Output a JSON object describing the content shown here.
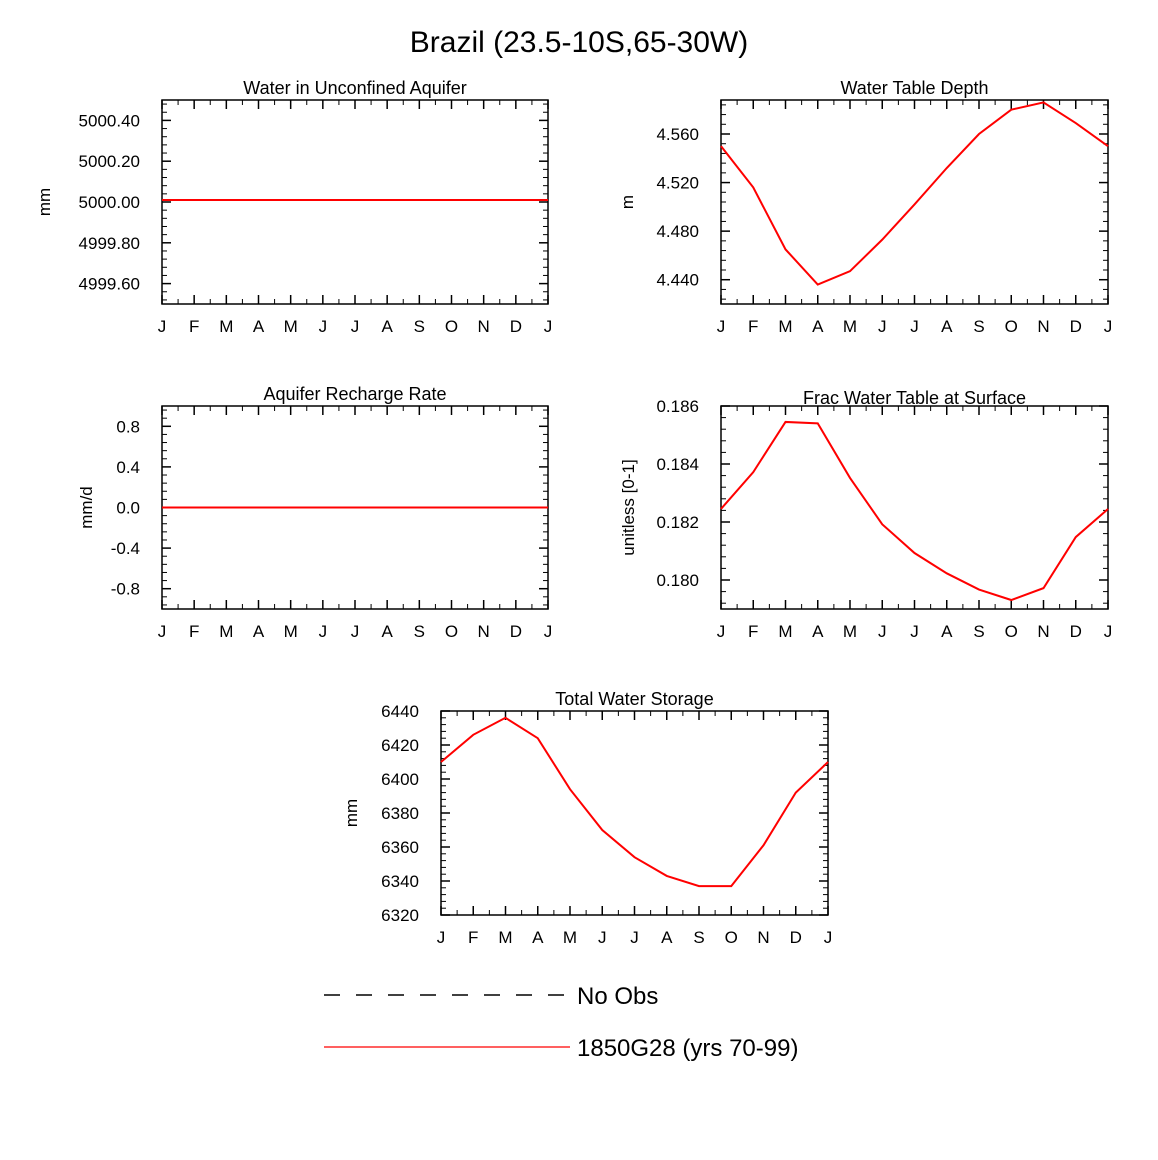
{
  "title": "Brazil (23.5-10S,65-30W)",
  "colors": {
    "series": "#ff0000",
    "obs": "#000000",
    "axis": "#000000"
  },
  "chart_data": [
    {
      "type": "line",
      "title": "Water in Unconfined Aquifer",
      "ylabel": "mm",
      "ylim": [
        4999.5,
        5000.5
      ],
      "yticks": [
        4999.6,
        4999.8,
        5000.0,
        5000.2,
        5000.4
      ],
      "ytick_labels": [
        "4999.60",
        "4999.80",
        "5000.00",
        "5000.20",
        "5000.40"
      ],
      "categories": [
        "J",
        "F",
        "M",
        "A",
        "M",
        "J",
        "J",
        "A",
        "S",
        "O",
        "N",
        "D",
        "J"
      ],
      "series": [
        {
          "name": "1850G28 (yrs 70-99)",
          "values": [
            5000.01,
            5000.01,
            5000.01,
            5000.01,
            5000.01,
            5000.01,
            5000.01,
            5000.01,
            5000.01,
            5000.01,
            5000.01,
            5000.01,
            5000.01
          ]
        }
      ]
    },
    {
      "type": "line",
      "title": "Water Table Depth",
      "ylabel": "m",
      "ylim": [
        4.42,
        4.588
      ],
      "yticks": [
        4.44,
        4.48,
        4.52,
        4.56
      ],
      "ytick_labels": [
        "4.440",
        "4.480",
        "4.520",
        "4.560"
      ],
      "categories": [
        "J",
        "F",
        "M",
        "A",
        "M",
        "J",
        "J",
        "A",
        "S",
        "O",
        "N",
        "D",
        "J"
      ],
      "series": [
        {
          "name": "1850G28 (yrs 70-99)",
          "values": [
            4.55,
            4.516,
            4.465,
            4.436,
            4.447,
            4.473,
            4.502,
            4.532,
            4.56,
            4.58,
            4.586,
            4.569,
            4.55
          ]
        }
      ]
    },
    {
      "type": "line",
      "title": "Aquifer Recharge Rate",
      "ylabel": "mm/d",
      "ylim": [
        -1.0,
        1.0
      ],
      "yticks": [
        -0.8,
        -0.4,
        0.0,
        0.4,
        0.8
      ],
      "ytick_labels": [
        "-0.8",
        "-0.4",
        "0.0",
        "0.4",
        "0.8"
      ],
      "categories": [
        "J",
        "F",
        "M",
        "A",
        "M",
        "J",
        "J",
        "A",
        "S",
        "O",
        "N",
        "D",
        "J"
      ],
      "series": [
        {
          "name": "1850G28 (yrs 70-99)",
          "values": [
            0,
            0,
            0,
            0,
            0,
            0,
            0,
            0,
            0,
            0,
            0,
            0,
            0
          ]
        }
      ]
    },
    {
      "type": "line",
      "title": "Frac Water Table at Surface",
      "ylabel": "unitless [0-1]",
      "ylim": [
        0.179,
        0.186
      ],
      "yticks": [
        0.18,
        0.182,
        0.184,
        0.186
      ],
      "ytick_labels": [
        "0.180",
        "0.182",
        "0.184",
        "0.186"
      ],
      "categories": [
        "J",
        "F",
        "M",
        "A",
        "M",
        "J",
        "J",
        "A",
        "S",
        "O",
        "N",
        "D",
        "J"
      ],
      "series": [
        {
          "name": "1850G28 (yrs 70-99)",
          "values": [
            0.18245,
            0.18372,
            0.18545,
            0.1854,
            0.18352,
            0.18192,
            0.18093,
            0.18023,
            0.17967,
            0.17931,
            0.17972,
            0.18148,
            0.18245
          ]
        }
      ]
    },
    {
      "type": "line",
      "title": "Total Water Storage",
      "ylabel": "mm",
      "ylim": [
        6320,
        6440
      ],
      "yticks": [
        6320,
        6340,
        6360,
        6380,
        6400,
        6420,
        6440
      ],
      "ytick_labels": [
        "6320",
        "6340",
        "6360",
        "6380",
        "6400",
        "6420",
        "6440"
      ],
      "categories": [
        "J",
        "F",
        "M",
        "A",
        "M",
        "J",
        "J",
        "A",
        "S",
        "O",
        "N",
        "D",
        "J"
      ],
      "series": [
        {
          "name": "1850G28 (yrs 70-99)",
          "values": [
            6410,
            6426,
            6436,
            6424,
            6394,
            6370,
            6354,
            6343,
            6337,
            6337,
            6361,
            6392,
            6410
          ]
        }
      ]
    }
  ],
  "legend": [
    {
      "label": "No Obs",
      "style": "dashed"
    },
    {
      "label": "1850G28 (yrs 70-99)",
      "style": "solid"
    }
  ]
}
